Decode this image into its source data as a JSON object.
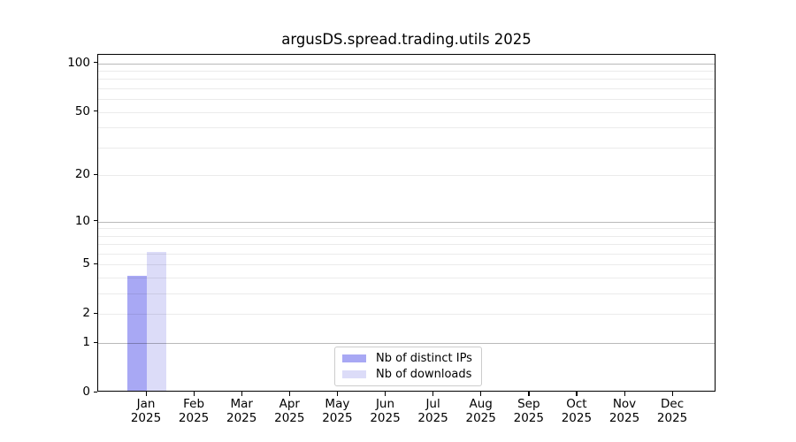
{
  "chart_data": {
    "type": "bar",
    "title": "argusDS.spread.trading.utils 2025",
    "months": [
      "Jan",
      "Feb",
      "Mar",
      "Apr",
      "May",
      "Jun",
      "Jul",
      "Aug",
      "Sep",
      "Oct",
      "Nov",
      "Dec"
    ],
    "year": "2025",
    "series": [
      {
        "name": "Nb of distinct IPs",
        "color": "#a8a8f4",
        "values": [
          4,
          0,
          0,
          0,
          0,
          0,
          0,
          0,
          0,
          0,
          0,
          0
        ]
      },
      {
        "name": "Nb of downloads",
        "color": "#dcdcf8",
        "values": [
          6,
          0,
          0,
          0,
          0,
          0,
          0,
          0,
          0,
          0,
          0,
          0
        ]
      }
    ],
    "y_axis": {
      "scale": "log1p",
      "tick_values": [
        0,
        1,
        2,
        5,
        10,
        20,
        50,
        100
      ],
      "tick_labels": [
        "0",
        "1",
        "2",
        "5",
        "10",
        "20",
        "50",
        "100"
      ],
      "major_gridlines": [
        1,
        10,
        100
      ],
      "minor_gridlines": [
        2,
        3,
        4,
        5,
        6,
        7,
        8,
        9,
        20,
        30,
        40,
        50,
        60,
        70,
        80,
        90
      ],
      "top_value": 113
    },
    "xlabel": "",
    "ylabel": "",
    "grid": true,
    "legend_position": "lower center"
  },
  "colors": {
    "spine": "#000000",
    "major_grid": "rgba(0,0,0,0.27)",
    "minor_grid": "rgba(0,0,0,0.08)",
    "legend_border": "#cccccc",
    "text": "#000000",
    "background": "#ffffff"
  }
}
